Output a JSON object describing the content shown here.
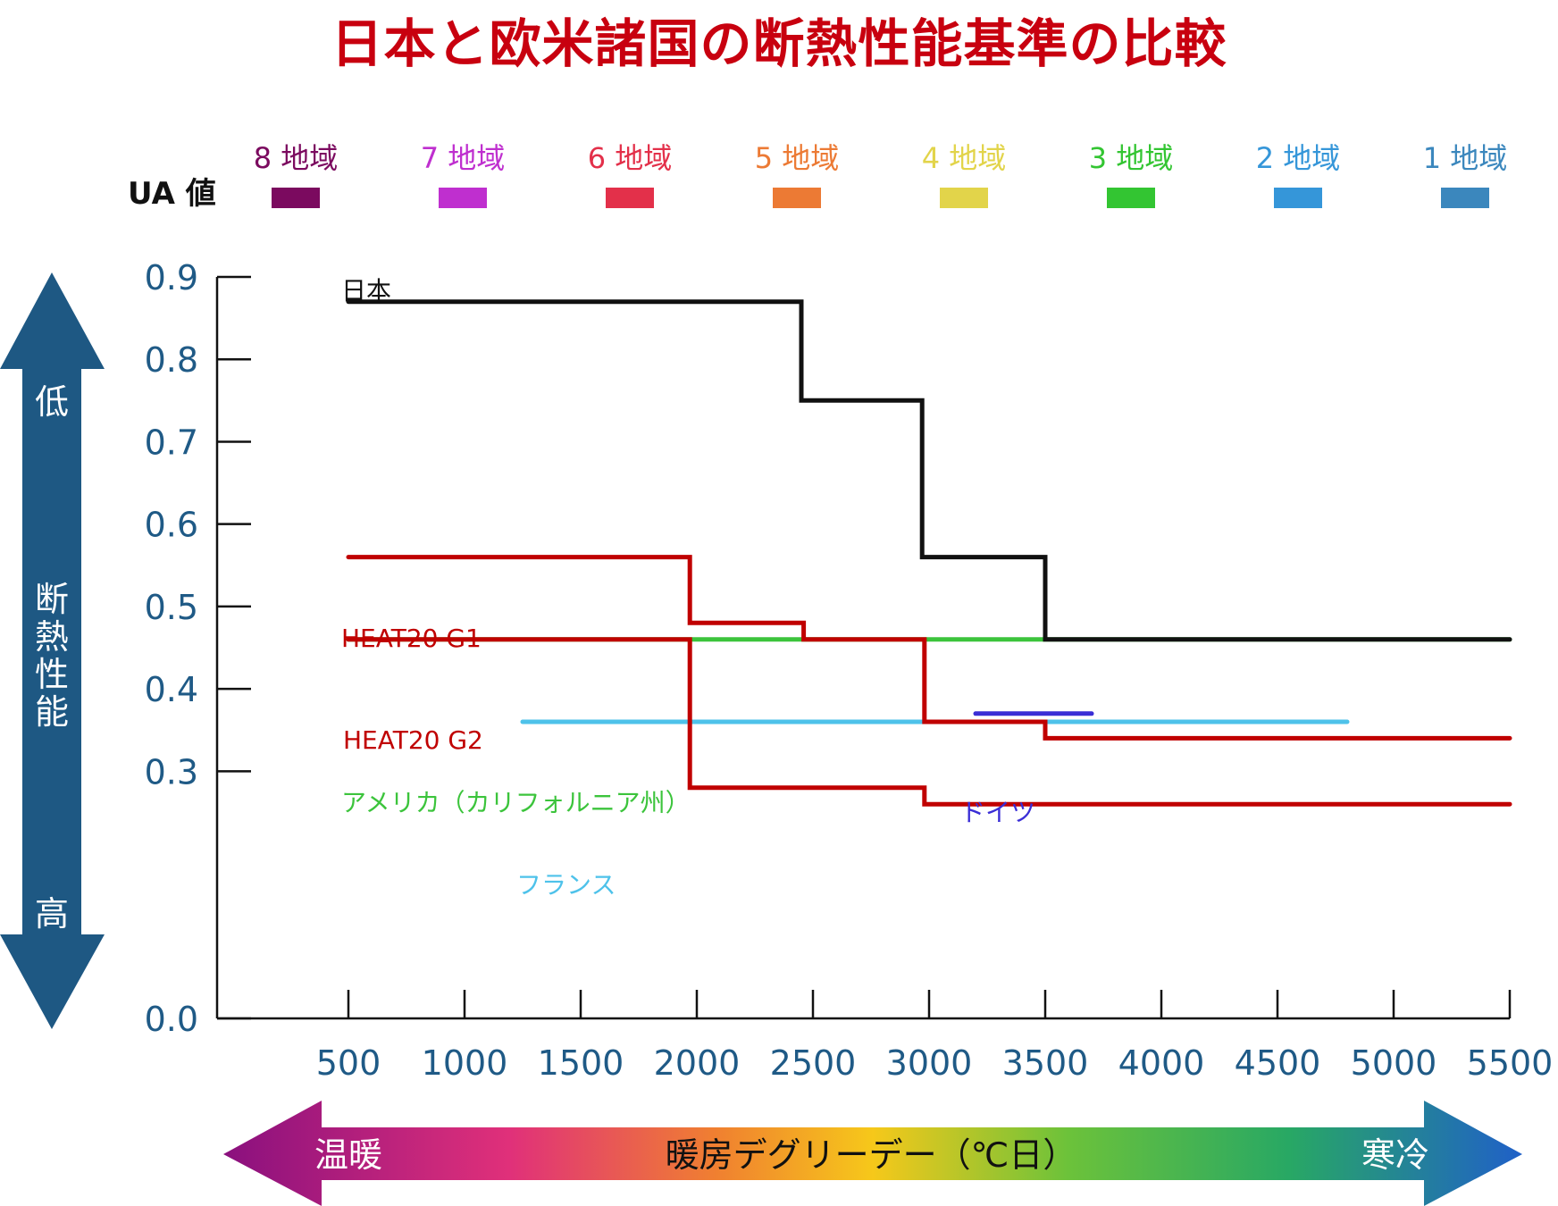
{
  "chart_data": {
    "type": "line",
    "step": true,
    "title": "日本と欧米諸国の断熱性能基準の比較",
    "ylabel": "UA 値",
    "y_axis_note": "断熱性能",
    "y_axis_low": "低",
    "y_axis_high": "高",
    "xlabel": "暖房デグリーデー（℃日）",
    "x_axis_warm": "温暖",
    "x_axis_cold": "寒冷",
    "xlim": [
      0,
      5500
    ],
    "ylim": [
      0,
      0.9
    ],
    "y_ticks": [
      "0.0",
      "0.3",
      "0.4",
      "0.5",
      "0.6",
      "0.7",
      "0.8",
      "0.9"
    ],
    "x_ticks": [
      "500",
      "1000",
      "1500",
      "2000",
      "2500",
      "3000",
      "3500",
      "4000",
      "4500",
      "5000",
      "5500"
    ],
    "grid": false,
    "legend_position": "top",
    "regions": [
      {
        "label": "8 地域",
        "color": "#7b0a5f"
      },
      {
        "label": "7 地域",
        "color": "#bf2fcf"
      },
      {
        "label": "6 地域",
        "color": "#e3304a"
      },
      {
        "label": "5 地域",
        "color": "#ec7a34"
      },
      {
        "label": "4 地域",
        "color": "#e2d44a"
      },
      {
        "label": "3 地域",
        "color": "#33c532"
      },
      {
        "label": "2 地域",
        "color": "#3596d9"
      },
      {
        "label": "1 地域",
        "color": "#3b87bd"
      }
    ],
    "series": [
      {
        "name": "日本",
        "color": "#111111",
        "x": [
          500,
          2450,
          2450,
          2970,
          2970,
          3500,
          3500,
          5500
        ],
        "y": [
          0.87,
          0.87,
          0.75,
          0.75,
          0.56,
          0.56,
          0.46,
          0.46
        ]
      },
      {
        "name": "HEAT20 G1",
        "color": "#c00000",
        "x": [
          500,
          1970,
          1970,
          2460,
          2460,
          2980,
          2980,
          3500,
          3500,
          5500
        ],
        "y": [
          0.56,
          0.56,
          0.48,
          0.48,
          0.46,
          0.46,
          0.36,
          0.36,
          0.34,
          0.34
        ]
      },
      {
        "name": "HEAT20 G2",
        "color": "#c00000",
        "x": [
          500,
          1970,
          1970,
          2980,
          2980,
          5500
        ],
        "y": [
          0.46,
          0.46,
          0.28,
          0.28,
          0.26,
          0.26
        ]
      },
      {
        "name": "アメリカ（カリフォルニア州）",
        "color": "#3cc43c",
        "x": [
          500,
          5500
        ],
        "y": [
          0.46,
          0.46
        ]
      },
      {
        "name": "ドイツ",
        "color": "#3a2ed6",
        "x": [
          3200,
          3700
        ],
        "y": [
          0.37,
          0.37
        ]
      },
      {
        "name": "フランス",
        "color": "#4ec2ea",
        "x": [
          1250,
          4800
        ],
        "y": [
          0.36,
          0.36
        ]
      }
    ],
    "colors": {
      "title": "#c8000f",
      "tick_labels": "#1f5a86",
      "side_arrow": "#1e5883",
      "axis": "#111111"
    }
  }
}
